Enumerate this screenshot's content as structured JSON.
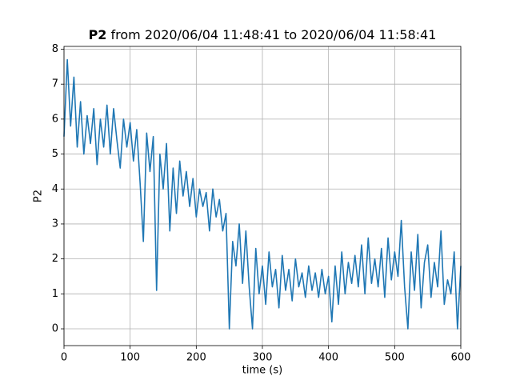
{
  "chart_data": {
    "type": "line",
    "title": [
      "P2",
      "from 2020/06/04 11:48:41 to 2020/06/04 11:58:41"
    ],
    "xlabel": "time (s)",
    "ylabel": "P2",
    "xlim": [
      0,
      600
    ],
    "ylim": [
      -0.48,
      8.08
    ],
    "xticks": [
      0,
      100,
      200,
      300,
      400,
      500,
      600
    ],
    "yticks": [
      0,
      1,
      2,
      3,
      4,
      5,
      6,
      7,
      8
    ],
    "grid": true,
    "series": [
      {
        "color": "#1f77b4",
        "x": [
          0,
          5,
          10,
          15,
          20,
          25,
          30,
          35,
          40,
          45,
          50,
          55,
          60,
          65,
          70,
          75,
          80,
          85,
          90,
          95,
          100,
          105,
          110,
          115,
          120,
          125,
          130,
          135,
          140,
          145,
          150,
          155,
          160,
          165,
          170,
          175,
          180,
          185,
          190,
          195,
          200,
          205,
          210,
          215,
          220,
          225,
          230,
          235,
          240,
          245,
          250,
          255,
          260,
          265,
          270,
          275,
          280,
          285,
          290,
          295,
          300,
          305,
          310,
          315,
          320,
          325,
          330,
          335,
          340,
          345,
          350,
          355,
          360,
          365,
          370,
          375,
          380,
          385,
          390,
          395,
          400,
          405,
          410,
          415,
          420,
          425,
          430,
          435,
          440,
          445,
          450,
          455,
          460,
          465,
          470,
          475,
          480,
          485,
          490,
          495,
          500,
          505,
          510,
          515,
          520,
          525,
          530,
          535,
          540,
          545,
          550,
          555,
          560,
          565,
          570,
          575,
          580,
          585,
          590,
          595,
          600
        ],
        "values": [
          5.5,
          7.7,
          5.8,
          7.2,
          5.2,
          6.5,
          5.0,
          6.1,
          5.3,
          6.3,
          4.7,
          6.0,
          5.2,
          6.4,
          5.0,
          6.3,
          5.4,
          4.6,
          6.0,
          5.2,
          5.9,
          4.8,
          5.7,
          4.2,
          2.5,
          5.6,
          4.5,
          5.5,
          1.1,
          5.0,
          4.0,
          5.3,
          2.8,
          4.6,
          3.3,
          4.8,
          3.8,
          4.5,
          3.5,
          4.3,
          3.2,
          4.0,
          3.5,
          3.9,
          2.8,
          4.0,
          3.2,
          3.7,
          2.8,
          3.3,
          0.0,
          2.5,
          1.8,
          3.0,
          1.3,
          2.8,
          1.2,
          0.0,
          2.3,
          1.0,
          1.8,
          0.7,
          2.2,
          1.2,
          1.7,
          0.6,
          2.1,
          1.1,
          1.7,
          0.8,
          2.0,
          1.2,
          1.6,
          0.9,
          1.8,
          1.1,
          1.6,
          0.9,
          1.7,
          1.0,
          1.5,
          0.2,
          1.8,
          0.7,
          2.2,
          1.0,
          1.9,
          1.3,
          2.1,
          1.2,
          2.4,
          1.0,
          2.6,
          1.3,
          2.0,
          1.2,
          2.3,
          0.9,
          2.6,
          1.4,
          2.2,
          1.5,
          3.1,
          1.2,
          0.0,
          2.2,
          1.1,
          2.7,
          0.6,
          1.9,
          2.4,
          0.9,
          1.9,
          1.2,
          2.8,
          0.7,
          1.4,
          1.0,
          2.2,
          0.0,
          1.8
        ]
      }
    ]
  }
}
